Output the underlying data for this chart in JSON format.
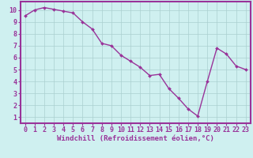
{
  "x": [
    0,
    1,
    2,
    3,
    4,
    5,
    6,
    7,
    8,
    9,
    10,
    11,
    12,
    13,
    14,
    15,
    16,
    17,
    18,
    19,
    20,
    21,
    22,
    23
  ],
  "y": [
    9.5,
    10.0,
    10.2,
    10.05,
    9.9,
    9.75,
    9.0,
    8.4,
    7.2,
    7.0,
    6.2,
    5.7,
    5.2,
    4.5,
    4.6,
    3.4,
    2.6,
    1.7,
    1.1,
    4.0,
    6.8,
    6.3,
    5.3,
    5.0
  ],
  "line_color": "#993399",
  "marker": "D",
  "marker_size": 2.0,
  "linewidth": 1.0,
  "xlabel": "Windchill (Refroidissement éolien,°C)",
  "ylabel_ticks": [
    "1",
    "2",
    "3",
    "4",
    "5",
    "6",
    "7",
    "8",
    "9",
    "10"
  ],
  "yticks": [
    1,
    2,
    3,
    4,
    5,
    6,
    7,
    8,
    9,
    10
  ],
  "ylim": [
    0.5,
    10.7
  ],
  "xlim": [
    -0.5,
    23.5
  ],
  "xticks": [
    0,
    1,
    2,
    3,
    4,
    5,
    6,
    7,
    8,
    9,
    10,
    11,
    12,
    13,
    14,
    15,
    16,
    17,
    18,
    19,
    20,
    21,
    22,
    23
  ],
  "bg_color": "#cff0f0",
  "grid_color": "#aacfcf",
  "axis_color": "#993399",
  "tick_color": "#993399",
  "label_color": "#993399",
  "xlabel_fontsize": 6.5,
  "tick_fontsize": 6.0
}
